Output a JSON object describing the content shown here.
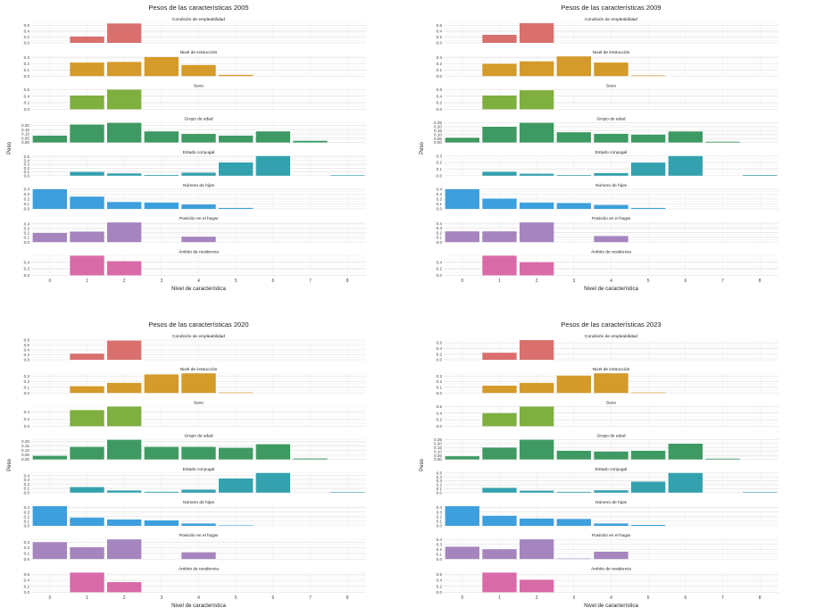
{
  "chart_data": [
    {
      "type": "bar",
      "title": "Pesos de las características 2005",
      "xlabel": "Nivel de característica",
      "ylabel": "Peso",
      "x_ticks": [
        "0",
        "1",
        "2",
        "3",
        "4",
        "5",
        "6",
        "7",
        "8"
      ],
      "panels": [
        {
          "name": "Condición de empleabilidad",
          "color": "#D9706E",
          "yticks": [
            "0.0",
            "0.2",
            "0.4",
            "0.6"
          ],
          "ymax": 0.68,
          "values": [
            null,
            0.22,
            0.67,
            null,
            null,
            null,
            null,
            null,
            null
          ]
        },
        {
          "name": "Nivel de instrucción",
          "color": "#D49A2A",
          "yticks": [
            "0.0",
            "0.1",
            "0.2",
            "0.3"
          ],
          "ymax": 0.32,
          "values": [
            null,
            0.22,
            0.23,
            0.31,
            0.18,
            0.02,
            null,
            null,
            null
          ]
        },
        {
          "name": "Sexo",
          "color": "#7FAF3F",
          "yticks": [
            "0.0",
            "0.2",
            "0.4",
            "0.6"
          ],
          "ymax": 0.6,
          "values": [
            null,
            0.42,
            0.6,
            null,
            null,
            null,
            null,
            null,
            null
          ]
        },
        {
          "name": "Grupo de edad",
          "color": "#3E9A62",
          "yticks": [
            "0.00",
            "0.05",
            "0.10",
            "0.15",
            "0.20"
          ],
          "ymax": 0.23,
          "values": [
            0.08,
            0.21,
            0.23,
            0.13,
            0.1,
            0.08,
            0.13,
            0.02,
            null
          ]
        },
        {
          "name": "Estado conyugal",
          "color": "#33A2AE",
          "yticks": [
            "0.0",
            "0.1",
            "0.2",
            "0.3",
            "0.4",
            "0.5"
          ],
          "ymax": 0.52,
          "values": [
            null,
            0.1,
            0.06,
            0.02,
            0.08,
            0.35,
            0.52,
            null,
            0.01
          ]
        },
        {
          "name": "Número de hijos",
          "color": "#3D9FDD",
          "yticks": [
            "0.0",
            "0.1",
            "0.2",
            "0.3",
            "0.4"
          ],
          "ymax": 0.4,
          "values": [
            0.4,
            0.25,
            0.14,
            0.13,
            0.09,
            0.02,
            null,
            null,
            null
          ]
        },
        {
          "name": "Posición en el hogar",
          "color": "#A685BE",
          "yticks": [
            "0.0",
            "0.1",
            "0.2",
            "0.3",
            "0.4"
          ],
          "ymax": 0.43,
          "values": [
            0.2,
            0.23,
            0.43,
            null,
            0.12,
            null,
            null,
            null,
            null
          ]
        },
        {
          "name": "Ámbito de residencia",
          "color": "#D96AA8",
          "yticks": [
            "0.0",
            "0.2",
            "0.4"
          ],
          "ymax": 0.6,
          "values": [
            null,
            0.6,
            0.43,
            null,
            null,
            null,
            null,
            null,
            null
          ]
        }
      ]
    },
    {
      "type": "bar",
      "title": "Pesos de las características 2009",
      "xlabel": "Nivel de característica",
      "ylabel": "Peso",
      "x_ticks": [
        "0",
        "1",
        "2",
        "3",
        "4",
        "5",
        "6",
        "7",
        "8"
      ],
      "panels": [
        {
          "name": "Condición de empleabilidad",
          "color": "#D9706E",
          "yticks": [
            "0.0",
            "0.2",
            "0.4",
            "0.6"
          ],
          "ymax": 0.68,
          "values": [
            null,
            0.28,
            0.68,
            null,
            null,
            null,
            null,
            null,
            null
          ]
        },
        {
          "name": "Nivel de instrucción",
          "color": "#D49A2A",
          "yticks": [
            "0.0",
            "0.1",
            "0.2",
            "0.3"
          ],
          "ymax": 0.32,
          "values": [
            null,
            0.2,
            0.24,
            0.32,
            0.22,
            0.01,
            null,
            null,
            null
          ]
        },
        {
          "name": "Sexo",
          "color": "#7FAF3F",
          "yticks": [
            "0.0",
            "0.2",
            "0.4",
            "0.6"
          ],
          "ymax": 0.6,
          "values": [
            null,
            0.42,
            0.58,
            null,
            null,
            null,
            null,
            null,
            null
          ]
        },
        {
          "name": "Grupo de edad",
          "color": "#3E9A62",
          "yticks": [
            "0.00",
            "0.05",
            "0.10",
            "0.15",
            "0.20",
            "0.25"
          ],
          "ymax": 0.25,
          "values": [
            0.06,
            0.2,
            0.25,
            0.13,
            0.11,
            0.1,
            0.14,
            0.01,
            null
          ]
        },
        {
          "name": "Estado conyugal",
          "color": "#33A2AE",
          "yticks": [
            "0.0",
            "0.1",
            "0.2",
            "0.3"
          ],
          "ymax": 0.3,
          "values": [
            null,
            0.06,
            0.03,
            0.01,
            0.04,
            0.2,
            0.3,
            null,
            0.01
          ]
        },
        {
          "name": "Número de hijos",
          "color": "#3D9FDD",
          "yticks": [
            "0.0",
            "0.1",
            "0.2",
            "0.3",
            "0.4"
          ],
          "ymax": 0.4,
          "values": [
            0.4,
            0.21,
            0.13,
            0.12,
            0.08,
            0.02,
            null,
            null,
            null
          ]
        },
        {
          "name": "Posición en el hogar",
          "color": "#A685BE",
          "yticks": [
            "0.0",
            "0.1",
            "0.2",
            "0.3",
            "0.4"
          ],
          "ymax": 0.42,
          "values": [
            0.23,
            0.23,
            0.42,
            null,
            0.13,
            null,
            null,
            null,
            null
          ]
        },
        {
          "name": "Ámbito de residencia",
          "color": "#D96AA8",
          "yticks": [
            "0.0",
            "0.2",
            "0.4"
          ],
          "ymax": 0.6,
          "values": [
            null,
            0.6,
            0.4,
            null,
            null,
            null,
            null,
            null,
            null
          ]
        }
      ]
    },
    {
      "type": "bar",
      "title": "Pesos de las características 2020",
      "xlabel": "Nivel de característica",
      "ylabel": "Peso",
      "x_ticks": [
        "0",
        "1",
        "2",
        "3",
        "4",
        "5",
        "6",
        "7",
        "8"
      ],
      "panels": [
        {
          "name": "Condición de empleabilidad",
          "color": "#D9706E",
          "yticks": [
            "0.0",
            "0.2",
            "0.4",
            "0.6",
            "0.8"
          ],
          "ymax": 0.8,
          "values": [
            null,
            0.25,
            0.78,
            null,
            null,
            null,
            null,
            null,
            null
          ]
        },
        {
          "name": "Nivel de instrucción",
          "color": "#D49A2A",
          "yticks": [
            "0.0",
            "0.1",
            "0.2",
            "0.3"
          ],
          "ymax": 0.35,
          "values": [
            null,
            0.12,
            0.18,
            0.33,
            0.35,
            0.01,
            null,
            null,
            null
          ]
        },
        {
          "name": "Sexo",
          "color": "#7FAF3F",
          "yticks": [
            "0.0",
            "0.2",
            "0.4"
          ],
          "ymax": 0.55,
          "values": [
            null,
            0.45,
            0.55,
            null,
            null,
            null,
            null,
            null,
            null
          ]
        },
        {
          "name": "Grupo de edad",
          "color": "#3E9A62",
          "yticks": [
            "0.00",
            "0.05",
            "0.10",
            "0.15",
            "0.20"
          ],
          "ymax": 0.22,
          "values": [
            0.04,
            0.14,
            0.22,
            0.14,
            0.14,
            0.13,
            0.17,
            0.01,
            null
          ]
        },
        {
          "name": "Estado conyugal",
          "color": "#33A2AE",
          "yticks": [
            "0.0",
            "0.1",
            "0.2",
            "0.3",
            "0.4"
          ],
          "ymax": 0.46,
          "values": [
            null,
            0.13,
            0.05,
            0.02,
            0.07,
            0.33,
            0.46,
            null,
            0.01
          ]
        },
        {
          "name": "Número de hijos",
          "color": "#3D9FDD",
          "yticks": [
            "0.0",
            "0.1",
            "0.2",
            "0.3",
            "0.4"
          ],
          "ymax": 0.43,
          "values": [
            0.43,
            0.18,
            0.14,
            0.12,
            0.05,
            0.01,
            null,
            null,
            null
          ]
        },
        {
          "name": "Posición en el hogar",
          "color": "#A685BE",
          "yticks": [
            "0.0",
            "0.1",
            "0.2",
            "0.3"
          ],
          "ymax": 0.35,
          "values": [
            0.3,
            0.21,
            0.35,
            null,
            0.12,
            null,
            null,
            null,
            null
          ]
        },
        {
          "name": "Ámbito de residencia",
          "color": "#D96AA8",
          "yticks": [
            "0.0",
            "0.2",
            "0.4",
            "0.6"
          ],
          "ymax": 0.66,
          "values": [
            null,
            0.66,
            0.34,
            null,
            null,
            null,
            null,
            null,
            null
          ]
        }
      ]
    },
    {
      "type": "bar",
      "title": "Pesos de las características 2023",
      "xlabel": "Nivel de característica",
      "ylabel": "Peso",
      "x_ticks": [
        "0",
        "1",
        "2",
        "3",
        "4",
        "5",
        "6",
        "7",
        "8"
      ],
      "panels": [
        {
          "name": "Condición de empleabilidad",
          "color": "#D9706E",
          "yticks": [
            "0.0",
            "0.2",
            "0.4",
            "0.6"
          ],
          "ymax": 0.7,
          "values": [
            null,
            0.25,
            0.7,
            null,
            null,
            null,
            null,
            null,
            null
          ]
        },
        {
          "name": "Nivel de instrucción",
          "color": "#D49A2A",
          "yticks": [
            "0.0",
            "0.1",
            "0.2",
            "0.3"
          ],
          "ymax": 0.35,
          "values": [
            null,
            0.13,
            0.18,
            0.31,
            0.35,
            0.01,
            null,
            null,
            null
          ]
        },
        {
          "name": "Sexo",
          "color": "#7FAF3F",
          "yticks": [
            "0.0",
            "0.2",
            "0.4",
            "0.6"
          ],
          "ymax": 0.6,
          "values": [
            null,
            0.4,
            0.6,
            null,
            null,
            null,
            null,
            null,
            null
          ]
        },
        {
          "name": "Grupo de edad",
          "color": "#3E9A62",
          "yticks": [
            "0.00",
            "0.05",
            "0.10",
            "0.15",
            "0.20",
            "0.25"
          ],
          "ymax": 0.25,
          "values": [
            0.04,
            0.15,
            0.25,
            0.11,
            0.1,
            0.11,
            0.2,
            0.01,
            null
          ]
        },
        {
          "name": "Estado conyugal",
          "color": "#33A2AE",
          "yticks": [
            "0.0",
            "0.1",
            "0.2",
            "0.3",
            "0.4",
            "0.5"
          ],
          "ymax": 0.5,
          "values": [
            null,
            0.12,
            0.05,
            0.02,
            0.06,
            0.28,
            0.5,
            null,
            0.01
          ]
        },
        {
          "name": "Número de hijos",
          "color": "#3D9FDD",
          "yticks": [
            "0.0",
            "0.1",
            "0.2",
            "0.3",
            "0.4"
          ],
          "ymax": 0.43,
          "values": [
            0.43,
            0.22,
            0.16,
            0.15,
            0.05,
            0.02,
            null,
            null,
            null
          ]
        },
        {
          "name": "Posición en el hogar",
          "color": "#A685BE",
          "yticks": [
            "0.0",
            "0.1",
            "0.2",
            "0.3",
            "0.4"
          ],
          "ymax": 0.4,
          "values": [
            0.25,
            0.2,
            0.4,
            0.01,
            0.15,
            null,
            null,
            null,
            null
          ]
        },
        {
          "name": "Ámbito de residencia",
          "color": "#D96AA8",
          "yticks": [
            "0.0",
            "0.2",
            "0.4",
            "0.6"
          ],
          "ymax": 0.66,
          "values": [
            null,
            0.66,
            0.42,
            null,
            null,
            null,
            null,
            null,
            null
          ]
        }
      ]
    }
  ]
}
